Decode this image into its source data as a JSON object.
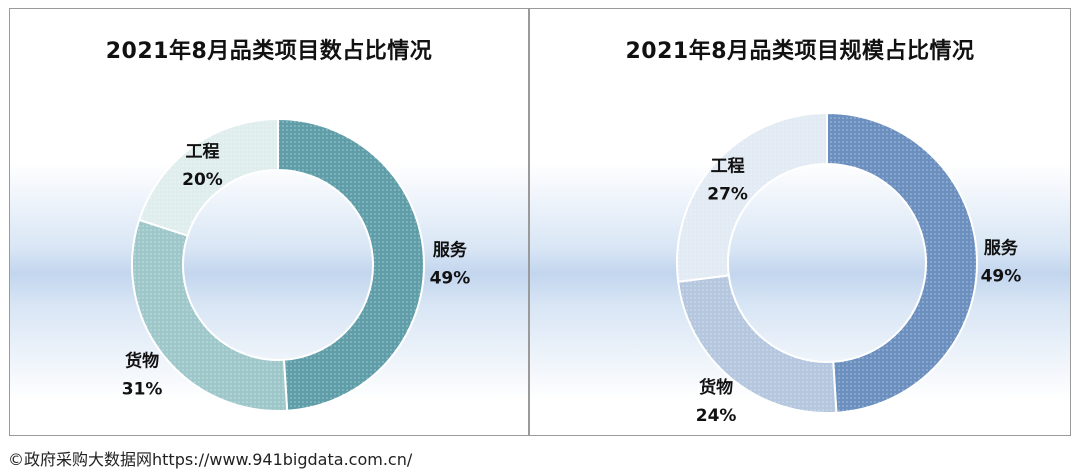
{
  "chart_data": [
    {
      "type": "pie",
      "title": "2021年8月品类项目数占比情况",
      "slices": [
        {
          "label": "服务",
          "value": 49,
          "display": "49%",
          "color": "#5f9ea8"
        },
        {
          "label": "货物",
          "value": 31,
          "display": "31%",
          "color": "#9ec7ca"
        },
        {
          "label": "工程",
          "value": 20,
          "display": "20%",
          "color": "#dfeeed"
        }
      ]
    },
    {
      "type": "pie",
      "title": "2021年8月品类项目规模占比情况",
      "slices": [
        {
          "label": "服务",
          "value": 49,
          "display": "49%",
          "color": "#6b8fbf"
        },
        {
          "label": "货物",
          "value": 24,
          "display": "24%",
          "color": "#b4c7de"
        },
        {
          "label": "工程",
          "value": 27,
          "display": "27%",
          "color": "#e2eaf3"
        }
      ]
    }
  ],
  "footer": {
    "credit": "©政府采购大数据网https://www.941bigdata.com.cn/"
  }
}
